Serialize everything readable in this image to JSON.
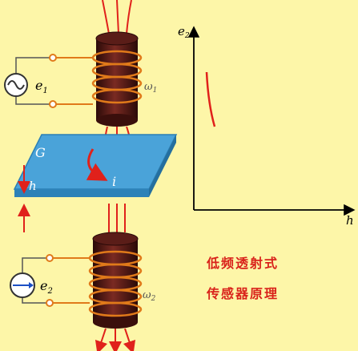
{
  "diagram": {
    "top_source_label_main": "e",
    "top_source_label_sub": "1",
    "top_coil_label": "ω",
    "top_coil_sub": "1",
    "plate_label": "G",
    "thickness_label": "h",
    "current_label": "i",
    "bottom_meter_label_main": "e",
    "bottom_meter_label_sub": "2",
    "bottom_coil_label": "ω",
    "bottom_coil_sub": "2",
    "graph_y_label_main": "e",
    "graph_y_label_sub": "2",
    "graph_x_label": "h",
    "caption_line1": "低频透射式",
    "caption_line2": "传感器原理"
  },
  "colors": {
    "background": "#fdf6a8",
    "coil_body": "#4a1512",
    "winding": "#e07a1a",
    "plate": "#4aa3d9",
    "arrow": "#e0211b",
    "caption": "#d9231b",
    "axis": "#000000"
  }
}
